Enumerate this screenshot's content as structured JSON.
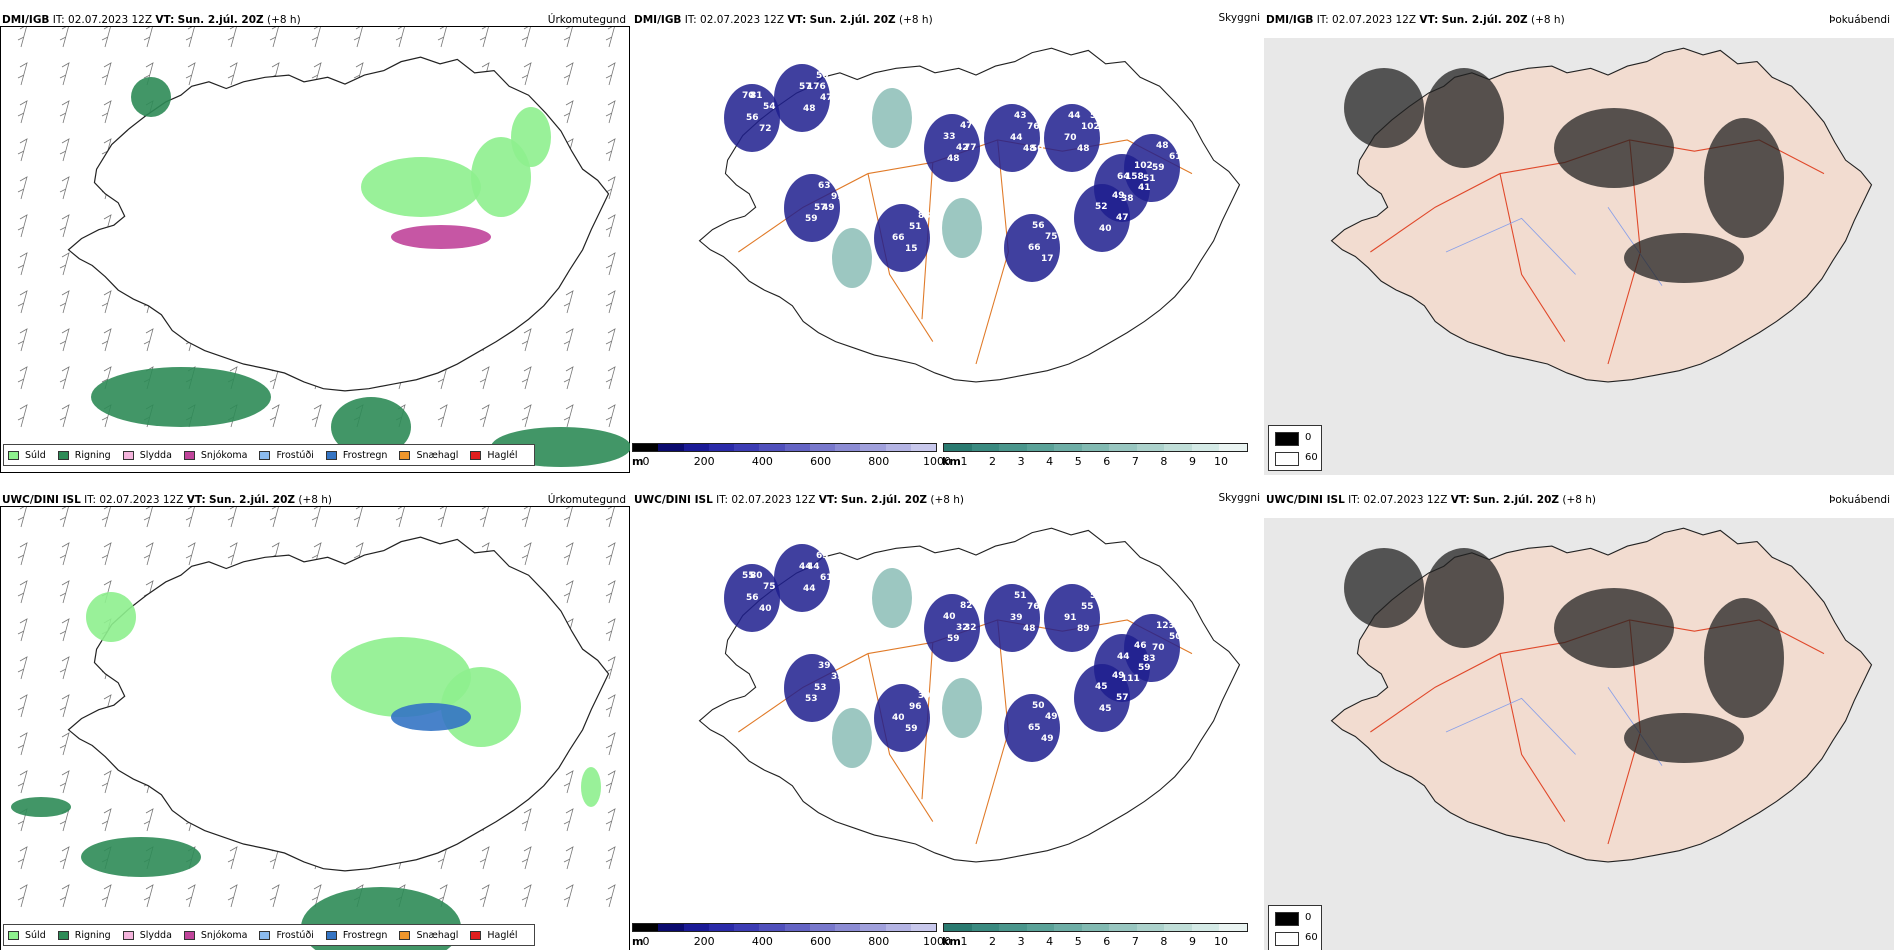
{
  "rows": [
    {
      "model": "DMI/IGB",
      "it_label": "IT:",
      "it_value": "02.07.2023 12Z",
      "vt_label": "VT:",
      "vt_value": "Sun. 2.júl. 20Z",
      "lead": "(+8 h)"
    },
    {
      "model": "UWC/DINI ISL",
      "it_label": "IT:",
      "it_value": "02.07.2023 12Z",
      "vt_label": "VT:",
      "vt_value": "Sun. 2.júl. 20Z",
      "lead": "(+8 h)"
    }
  ],
  "titles": {
    "precip_type": "Úrkomutegund",
    "visibility": "Skyggni",
    "fog": "Þokuábendi"
  },
  "precip_legend": [
    {
      "label": "Súld",
      "color": "#8ef08e"
    },
    {
      "label": "Rigning",
      "color": "#2e8b57"
    },
    {
      "label": "Slydda",
      "color": "#f4b4dc"
    },
    {
      "label": "Snjókoma",
      "color": "#c0449a"
    },
    {
      "label": "Frostúði",
      "color": "#8cbcf0"
    },
    {
      "label": "Frostregn",
      "color": "#3474c4"
    },
    {
      "label": "Snæhagl",
      "color": "#f0962c"
    },
    {
      "label": "Haglél",
      "color": "#e01e1e"
    }
  ],
  "cloud_base_bar": {
    "unit": "m",
    "ticks": [
      "0",
      "200",
      "400",
      "600",
      "800",
      "1000"
    ],
    "colors": [
      "#000000",
      "#0a0a6e",
      "#1a1a96",
      "#2a2aa8",
      "#3c3cb4",
      "#5050bc",
      "#6464c4",
      "#7878cc",
      "#8c8cd4",
      "#a0a0dc",
      "#b4b4e4",
      "#c8c8ec"
    ]
  },
  "visibility_bar": {
    "unit": "km",
    "ticks": [
      "1",
      "2",
      "3",
      "4",
      "5",
      "6",
      "7",
      "8",
      "9",
      "10"
    ],
    "colors": [
      "#2a7a70",
      "#3a8a80",
      "#4a968c",
      "#5aa298",
      "#6eaea6",
      "#82bab2",
      "#98c6c0",
      "#acd2cc",
      "#c0ded8",
      "#d4eae6",
      "#eaf4f2"
    ]
  },
  "fog_key": {
    "dark": "0",
    "light": "60"
  },
  "cloud_base_values_top": [
    "70",
    "57",
    "42",
    "48",
    "58",
    "64",
    "57",
    "17",
    "83",
    "52",
    "59",
    "72",
    "50",
    "33",
    "44",
    "48",
    "102",
    "91",
    "66",
    "15",
    "49",
    "61",
    "56",
    "48",
    "47",
    "76",
    "70",
    "38",
    "63",
    "75",
    "66",
    "40",
    "48",
    "54",
    "47",
    "48",
    "43",
    "102",
    "41",
    "59",
    "56",
    "51",
    "47",
    "51",
    "81",
    "176",
    "77",
    "50",
    "44",
    "158",
    "49"
  ],
  "cloud_base_values_bottom": [
    "55",
    "44",
    "32",
    "48",
    "50",
    "44",
    "53",
    "49",
    "39",
    "45",
    "70",
    "40",
    "63",
    "40",
    "39",
    "89",
    "46",
    "33",
    "65",
    "59",
    "49",
    "50",
    "56",
    "44",
    "82",
    "76",
    "91",
    "111",
    "39",
    "49",
    "40",
    "45",
    "123",
    "75",
    "61",
    "59",
    "51",
    "55",
    "59",
    "53",
    "50",
    "96",
    "57",
    "83",
    "80",
    "44",
    "32"
  ]
}
